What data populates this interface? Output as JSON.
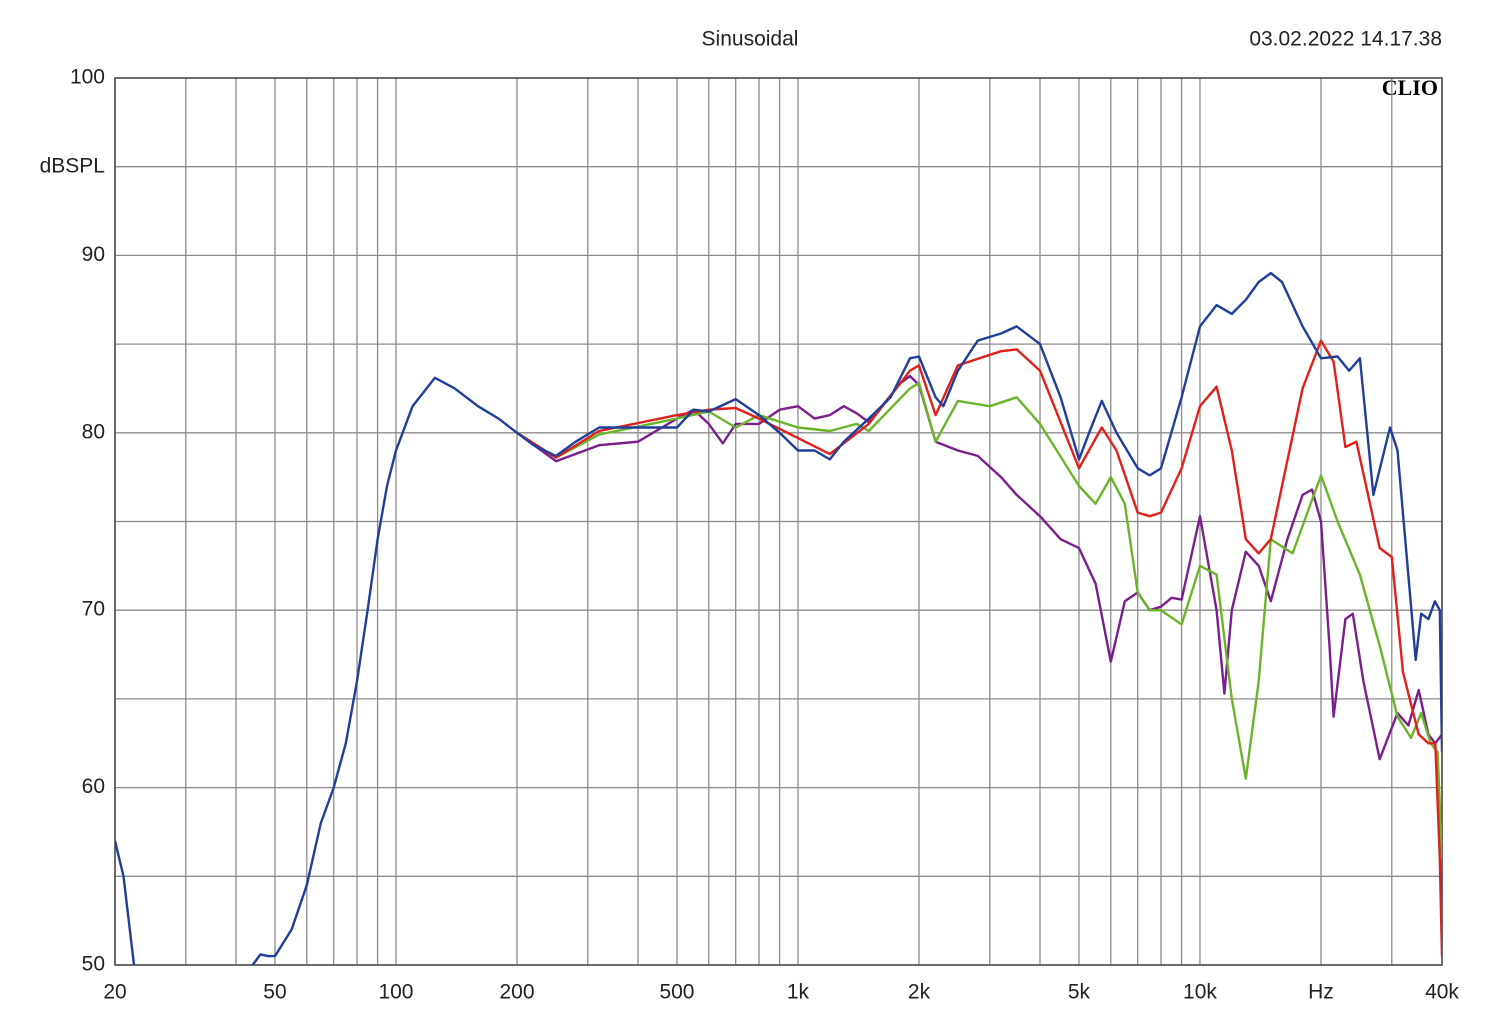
{
  "chart_data": {
    "type": "line",
    "title": "Sinusoidal",
    "timestamp": "03.02.2022 14.17.38",
    "brand": "CLIO",
    "ylabel": "dBSPL",
    "xscale": "log",
    "xlim": [
      20,
      40000
    ],
    "ylim": [
      50,
      100
    ],
    "grid": true,
    "xticks": [
      20,
      50,
      100,
      200,
      500,
      {
        "value": 1000,
        "label": "1k"
      },
      {
        "value": 2000,
        "label": "2k"
      },
      {
        "value": 5000,
        "label": "5k"
      },
      {
        "value": 10000,
        "label": "10k"
      },
      {
        "value": 20000,
        "label": "Hz"
      },
      {
        "value": 40000,
        "label": "40k"
      }
    ],
    "x_minor_ticks": [
      30,
      40,
      60,
      70,
      80,
      90,
      300,
      400,
      600,
      700,
      800,
      900,
      3000,
      4000,
      6000,
      7000,
      8000,
      9000,
      30000
    ],
    "yticks": [
      50,
      60,
      70,
      80,
      90,
      100
    ],
    "y_minor_ticks": [
      55,
      65,
      75,
      85,
      95
    ],
    "series": [
      {
        "color": "#1f3f9a",
        "x": [
          20,
          21,
          22.3,
          30,
          44,
          46,
          48,
          50,
          55,
          60,
          65,
          70,
          75,
          80,
          85,
          90,
          95,
          100,
          110,
          125,
          140,
          160,
          180,
          200,
          220,
          250,
          280,
          320,
          400,
          500,
          550,
          600,
          700,
          800,
          900,
          1000,
          1100,
          1200,
          1300,
          1500,
          1700,
          1900,
          2000,
          2200,
          2300,
          2500,
          2800,
          3200,
          3500,
          4000,
          4500,
          5000,
          5300,
          5700,
          6200,
          7000,
          7500,
          8000,
          9000,
          10000,
          11000,
          12000,
          13000,
          14000,
          15000,
          16000,
          18000,
          20000,
          22000,
          23500,
          25000,
          27000,
          29700,
          31000,
          34400,
          35500,
          37000,
          38400,
          39500,
          40000
        ],
        "values": [
          57,
          55,
          50,
          null,
          50,
          50.6,
          50.5,
          50.5,
          52,
          54.5,
          58,
          60,
          62.5,
          66,
          70,
          74,
          77,
          79,
          81.5,
          83.1,
          82.5,
          81.5,
          80.8,
          80,
          79.3,
          78.7,
          79.5,
          80.3,
          80.3,
          80.3,
          81.3,
          81.2,
          81.9,
          81,
          80,
          79,
          79,
          78.5,
          79.5,
          80.8,
          82,
          84.2,
          84.3,
          82,
          81.5,
          83.5,
          85.2,
          85.6,
          86,
          85,
          82,
          78.5,
          80,
          81.8,
          80,
          78,
          77.6,
          78,
          82,
          86,
          87.2,
          86.7,
          87.5,
          88.5,
          89,
          88.5,
          86,
          84.2,
          84.3,
          83.5,
          84.2,
          76.5,
          80.3,
          79,
          67.2,
          69.8,
          69.5,
          70.5,
          70,
          62
        ]
      },
      {
        "color": "#e0201b",
        "x": [
          200,
          250,
          320,
          500,
          600,
          700,
          800,
          1000,
          1200,
          1500,
          1900,
          2000,
          2200,
          2500,
          3200,
          3500,
          4000,
          5000,
          5700,
          6200,
          7000,
          7500,
          8000,
          9000,
          10000,
          11000,
          12000,
          13000,
          14000,
          15000,
          18000,
          20000,
          21500,
          23000,
          24500,
          28000,
          30000,
          32000,
          35000,
          37000,
          38500,
          39500,
          40000
        ],
        "values": [
          80,
          78.6,
          80.1,
          81,
          81.3,
          81.4,
          80.8,
          79.7,
          78.8,
          80.5,
          83.5,
          83.8,
          81,
          83.8,
          84.6,
          84.7,
          83.5,
          78,
          80.3,
          79,
          75.5,
          75.3,
          75.5,
          78,
          81.5,
          82.6,
          79,
          74,
          73.2,
          74,
          82.5,
          85.2,
          84,
          79.2,
          79.5,
          73.5,
          73,
          66.5,
          63,
          62.5,
          62.5,
          56,
          50.5
        ]
      },
      {
        "color": "#6ab42a",
        "x": [
          200,
          250,
          320,
          500,
          600,
          700,
          800,
          1000,
          1200,
          1400,
          1500,
          1900,
          2000,
          2200,
          2500,
          3000,
          3500,
          4000,
          5000,
          5500,
          6000,
          6500,
          7000,
          7500,
          8000,
          9000,
          10000,
          11000,
          12000,
          13000,
          14000,
          15000,
          17000,
          20000,
          22000,
          25000,
          28000,
          31000,
          33500,
          35500,
          37500,
          39000,
          40000
        ],
        "values": [
          80,
          78.6,
          79.9,
          80.8,
          81.2,
          80.3,
          81,
          80.3,
          80.1,
          80.5,
          80.1,
          82.5,
          82.8,
          79.5,
          81.8,
          81.5,
          82,
          80.5,
          77,
          76,
          77.5,
          76,
          71,
          70,
          70,
          69.2,
          72.5,
          72,
          65,
          60.5,
          66,
          74,
          73.2,
          77.6,
          75,
          72,
          68,
          64,
          62.8,
          64.2,
          62.5,
          62,
          56
        ]
      },
      {
        "color": "#7a1f8c",
        "x": [
          200,
          250,
          320,
          400,
          500,
          550,
          600,
          650,
          700,
          800,
          900,
          1000,
          1100,
          1200,
          1300,
          1400,
          1500,
          1800,
          1900,
          2000,
          2200,
          2500,
          2800,
          3200,
          3500,
          4000,
          4500,
          5000,
          5500,
          6000,
          6500,
          7000,
          7500,
          8000,
          8500,
          9000,
          10000,
          11000,
          11500,
          12000,
          13000,
          14000,
          15000,
          16500,
          18000,
          19000,
          20000,
          21000,
          21500,
          23000,
          24000,
          25500,
          28000,
          31000,
          33000,
          35000,
          37000,
          38500,
          40000
        ],
        "values": [
          80,
          78.4,
          79.3,
          79.5,
          80.8,
          81.3,
          80.5,
          79.4,
          80.5,
          80.5,
          81.3,
          81.5,
          80.8,
          81,
          81.5,
          81.1,
          80.6,
          82.8,
          83.2,
          82.7,
          79.5,
          79,
          78.7,
          77.5,
          76.5,
          75.3,
          74,
          73.5,
          71.5,
          67.1,
          70.5,
          71,
          70,
          70.2,
          70.7,
          70.6,
          75.3,
          70,
          65.3,
          70,
          73.3,
          72.5,
          70.5,
          74,
          76.5,
          76.8,
          75,
          68,
          64,
          69.5,
          69.8,
          66,
          61.6,
          64.2,
          63.5,
          65.5,
          63,
          62.5,
          63
        ]
      }
    ]
  }
}
